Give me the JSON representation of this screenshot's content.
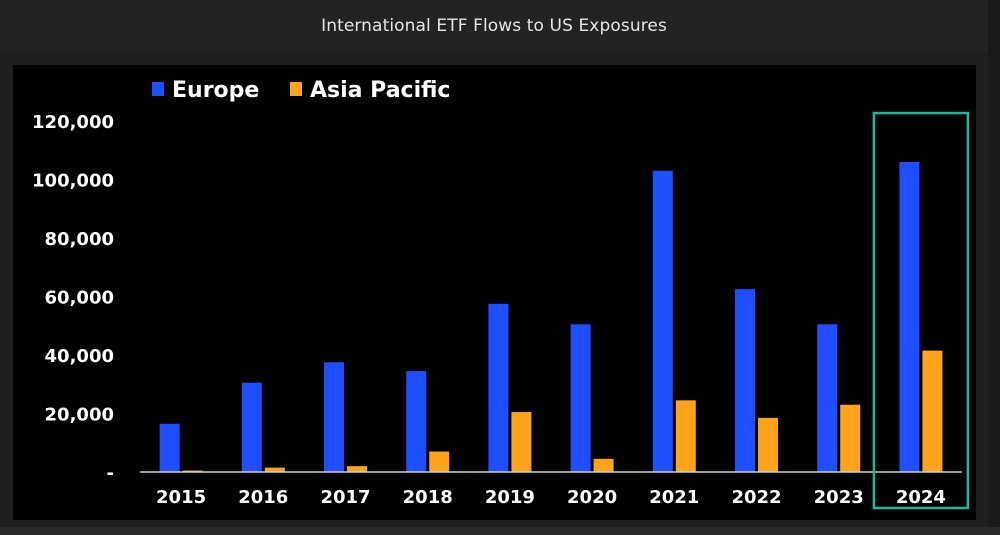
{
  "header": {
    "title": "International ETF Flows to US Exposures"
  },
  "colors": {
    "europe": "#1f4eff",
    "asia_pacific": "#ffa31a",
    "highlight": "#1fb89a",
    "axis_text": "#ffffff",
    "background": "#000000"
  },
  "chart_data": {
    "type": "bar",
    "title": "",
    "xlabel": "",
    "ylabel": "",
    "categories": [
      "2015",
      "2016",
      "2017",
      "2018",
      "2019",
      "2020",
      "2021",
      "2022",
      "2023",
      "2024"
    ],
    "series": [
      {
        "name": "Europe",
        "values": [
          16500,
          30500,
          37500,
          34500,
          57500,
          50500,
          103000,
          62500,
          50500,
          106000
        ]
      },
      {
        "name": "Asia Pacific",
        "values": [
          500,
          1500,
          2000,
          7000,
          20500,
          4500,
          24500,
          18500,
          23000,
          41500
        ]
      }
    ],
    "yticks": [
      "-",
      "20,000",
      "40,000",
      "60,000",
      "80,000",
      "100,000",
      "120,000"
    ],
    "ytick_values": [
      0,
      20000,
      40000,
      60000,
      80000,
      100000,
      120000
    ],
    "ylim": [
      0,
      120000
    ],
    "grid": false,
    "legend_position": "top-left",
    "highlighted_category": "2024"
  }
}
